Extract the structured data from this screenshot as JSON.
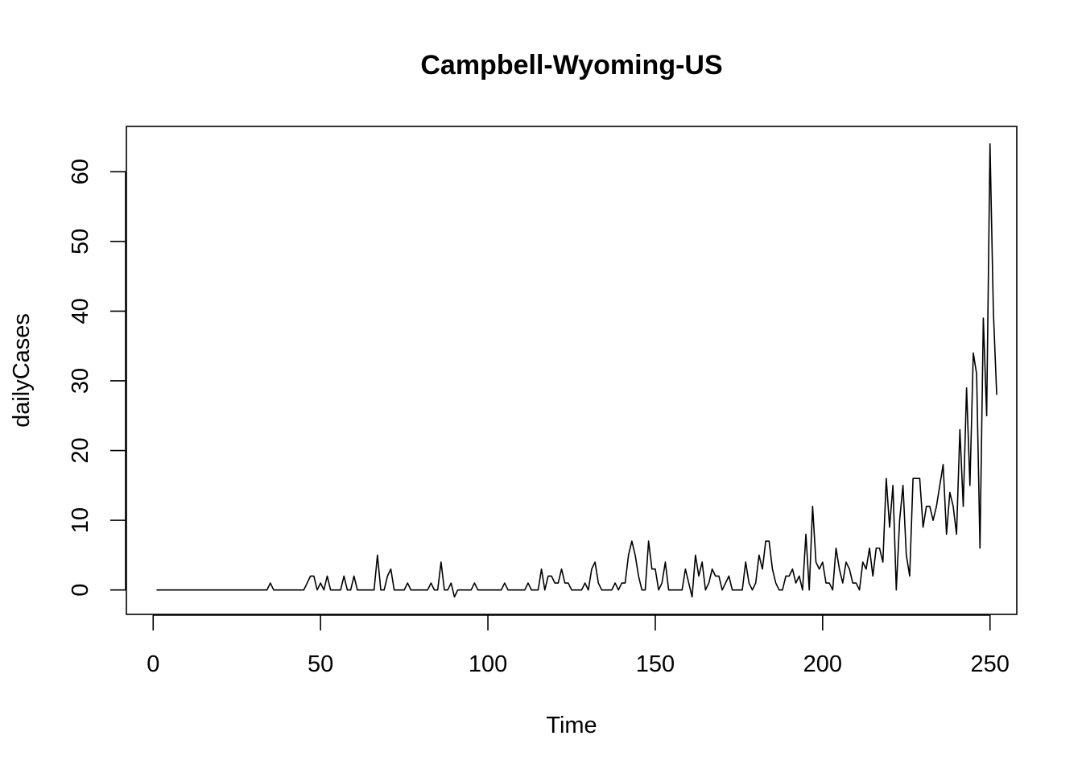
{
  "chart_data": {
    "type": "line",
    "title": "Campbell-Wyoming-US",
    "xlabel": "Time",
    "ylabel": "dailyCases",
    "xlim": [
      -8,
      258
    ],
    "ylim": [
      -3.5,
      66.5
    ],
    "xticks": [
      0,
      50,
      100,
      150,
      200,
      250
    ],
    "yticks": [
      0,
      10,
      20,
      30,
      40,
      50,
      60
    ],
    "grid": false,
    "legend": "none",
    "line_color": "#000000",
    "x_start": 1,
    "y": [
      0,
      0,
      0,
      0,
      0,
      0,
      0,
      0,
      0,
      0,
      0,
      0,
      0,
      0,
      0,
      0,
      0,
      0,
      0,
      0,
      0,
      0,
      0,
      0,
      0,
      0,
      0,
      0,
      0,
      0,
      0,
      0,
      0,
      0,
      1,
      0,
      0,
      0,
      0,
      0,
      0,
      0,
      0,
      0,
      0,
      1,
      2,
      2,
      0,
      1,
      0,
      2,
      0,
      0,
      0,
      0,
      2,
      0,
      0,
      2,
      0,
      0,
      0,
      0,
      0,
      0,
      5,
      0,
      0,
      2,
      3,
      0,
      0,
      0,
      0,
      1,
      0,
      0,
      0,
      0,
      0,
      0,
      1,
      0,
      0,
      4,
      0,
      0,
      1,
      -1,
      0,
      0,
      0,
      0,
      0,
      1,
      0,
      0,
      0,
      0,
      0,
      0,
      0,
      0,
      1,
      0,
      0,
      0,
      0,
      0,
      0,
      1,
      0,
      0,
      0,
      3,
      0,
      2,
      2,
      1,
      1,
      3,
      1,
      1,
      0,
      0,
      0,
      0,
      1,
      0,
      3,
      4,
      1,
      0,
      0,
      0,
      0,
      1,
      0,
      1,
      1,
      5,
      7,
      5,
      2,
      0,
      0,
      7,
      3,
      3,
      0,
      1,
      4,
      0,
      0,
      0,
      0,
      0,
      3,
      1,
      -1,
      5,
      2,
      4,
      0,
      1,
      3,
      2,
      2,
      0,
      1,
      2,
      0,
      0,
      0,
      0,
      4,
      1,
      0,
      1,
      5,
      3,
      7,
      7,
      3,
      1,
      0,
      0,
      2,
      2,
      3,
      1,
      2,
      0,
      8,
      0,
      12,
      4,
      3,
      4,
      1,
      1,
      0,
      6,
      3,
      1,
      4,
      3,
      1,
      1,
      0,
      4,
      3,
      6,
      2,
      6,
      6,
      4,
      16,
      9,
      15,
      0,
      10,
      15,
      5,
      2,
      16,
      16,
      16,
      9,
      12,
      12,
      10,
      12,
      15,
      18,
      8,
      14,
      12,
      8,
      23,
      12,
      29,
      15,
      34,
      31,
      6,
      39,
      25,
      64,
      40,
      28
    ]
  }
}
